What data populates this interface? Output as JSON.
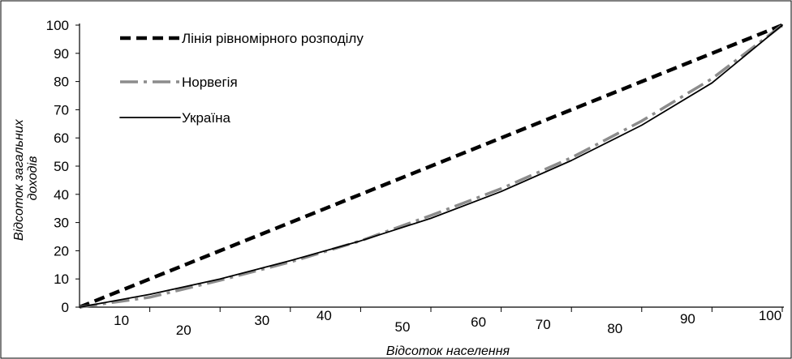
{
  "chart_data": {
    "type": "line",
    "title": "",
    "xlabel": "Відсоток населення",
    "ylabel_lines": [
      "Відсоток загальних",
      "доходів"
    ],
    "x": [
      0,
      10,
      20,
      30,
      40,
      50,
      60,
      70,
      80,
      90,
      100
    ],
    "x_tick_labels": [
      "10",
      "20",
      "30",
      "40",
      "50",
      "60",
      "70",
      "80",
      "90",
      "100"
    ],
    "y_ticks": [
      0,
      10,
      20,
      30,
      40,
      50,
      60,
      70,
      80,
      90,
      100
    ],
    "xlim": [
      0,
      100
    ],
    "ylim": [
      0,
      100
    ],
    "grid": false,
    "legend_position": "top-left",
    "series": [
      {
        "name": "Лінія рівномірного розподілу",
        "style": "dashed",
        "color": "#000000",
        "values": [
          0,
          10,
          20,
          30,
          40,
          50,
          60,
          70,
          80,
          90,
          100
        ]
      },
      {
        "name": "Норвегія",
        "style": "dash-dot",
        "color": "#8c8c8c",
        "values": [
          0,
          3.5,
          9.5,
          16,
          23.5,
          32.5,
          42,
          53,
          66,
          81,
          100
        ]
      },
      {
        "name": "Україна",
        "style": "solid",
        "color": "#000000",
        "values": [
          0,
          4.5,
          10,
          16.5,
          23.5,
          31.5,
          41,
          52,
          64.5,
          79.5,
          100
        ]
      }
    ]
  }
}
